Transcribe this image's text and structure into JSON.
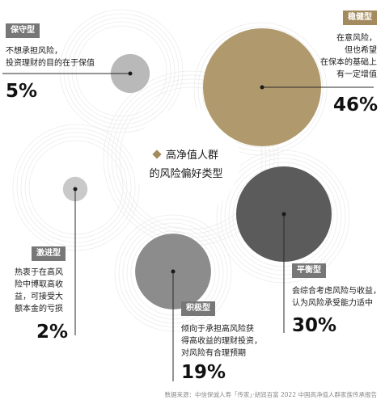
{
  "title_line1": "高净值人群",
  "title_line2": "的风险偏好类型",
  "source": "数据来源：中信保诚人寿「传家」·胡润百富 2022 中国高净值人群家族传承报告",
  "chart_data": {
    "type": "bubble",
    "title": "高净值人群的风险偏好类型",
    "categories": [
      "保守型",
      "稳健型",
      "激进型",
      "平衡型",
      "积极型"
    ],
    "values": [
      5,
      46,
      2,
      30,
      19
    ],
    "unit": "%",
    "series": [
      {
        "key": "conservative",
        "name": "保守型",
        "value": 5,
        "label": "5%",
        "description": "不想承担风险，\n投资理财的目的在于保值",
        "color": "#b9b9b9"
      },
      {
        "key": "steady",
        "name": "稳健型",
        "value": 46,
        "label": "46%",
        "description": "在意风险，\n但也希望\n在保本的基础上\n有一定增值",
        "color": "#b09a6d"
      },
      {
        "key": "aggressive",
        "name": "激进型",
        "value": 2,
        "label": "2%",
        "description": "热衷于在高风\n险中博取高收\n益，可接受大\n额本金的亏损",
        "color": "#c9c9c9"
      },
      {
        "key": "balanced",
        "name": "平衡型",
        "value": 30,
        "label": "30%",
        "description": "会综合考虑风险与收益，\n认为风险承受能力适中",
        "color": "#5b5b5b"
      },
      {
        "key": "active",
        "name": "积极型",
        "value": 19,
        "label": "19%",
        "description": "倾向于承担高风险获\n得高收益的理财投资，\n对风险有合理预期",
        "color": "#8c8c8c"
      }
    ]
  },
  "colors": {
    "gold_tag": "#a38b5e",
    "gray_tag": "#777777",
    "ring": "#ececec",
    "leader": "#2a2a2a"
  }
}
